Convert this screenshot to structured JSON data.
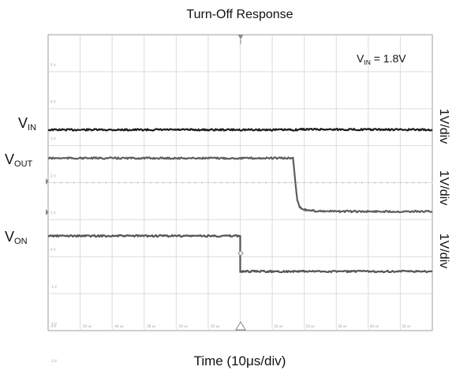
{
  "chart_data": {
    "type": "line",
    "title": "Turn-Off Response",
    "xlabel": "Time (10μs/div)",
    "xlim": [
      -60,
      60
    ],
    "x_unit": "μs",
    "x_tick_labels": [
      "-4 V",
      "-50 us",
      "-40 us",
      "-30 us",
      "-20 us",
      "-10 us",
      "0",
      "10 us",
      "20 us",
      "30 us",
      "40 us",
      "50 us"
    ],
    "y_divisions": 8,
    "y_tick_labels": [
      "5 V",
      "4 V",
      "3 V",
      "2 V",
      "1 V",
      "0 V",
      "-1 V",
      "-2 V",
      "-3 V"
    ],
    "grid": true,
    "annotation": {
      "main": "V",
      "sub": "IN",
      "suffix": " = 1.8V",
      "position": "top-right"
    },
    "series": [
      {
        "name": "VIN",
        "label_main": "V",
        "label_sub": "IN",
        "scale": "1V/div",
        "color": "#1c1c1c",
        "x": [
          -60,
          17.4,
          19,
          60
        ],
        "y": [
          1.8,
          1.8,
          1.85,
          1.8
        ]
      },
      {
        "name": "VOUT",
        "label_main": "V",
        "label_sub": "OUT",
        "scale": "1V/div",
        "color": "#5e5e5e",
        "x": [
          -60,
          16.5,
          17.2,
          17.8,
          18.6,
          20,
          23,
          30,
          60
        ],
        "y": [
          1.8,
          1.8,
          1.0,
          0.4,
          0.15,
          0.06,
          0.02,
          0,
          0
        ]
      },
      {
        "name": "VON",
        "label_main": "V",
        "label_sub": "ON",
        "scale": "1V/div",
        "color": "#555555",
        "x": [
          -60,
          0,
          0,
          60
        ],
        "y": [
          1.8,
          1.8,
          0,
          0
        ]
      }
    ]
  }
}
